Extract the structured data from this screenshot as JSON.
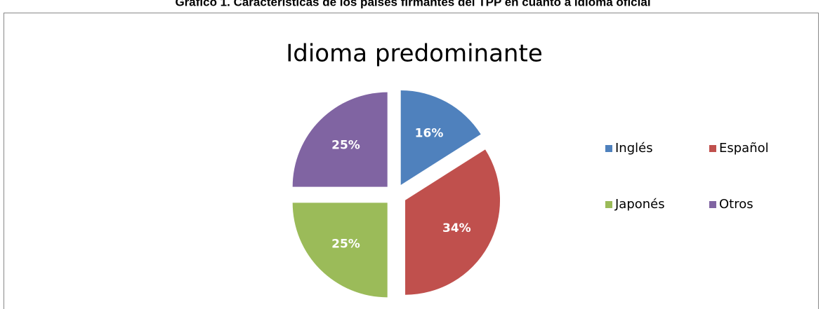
{
  "caption": "Gráfico 1. Características de los países firmantes del TPP en cuanto a idioma oficial",
  "chart_data": {
    "type": "pie",
    "title": "Idioma predominante",
    "categories": [
      "Inglés",
      "Español",
      "Japonés",
      "Otros"
    ],
    "values": [
      16,
      34,
      25,
      25
    ],
    "value_labels": [
      "16%",
      "34%",
      "25%",
      "25%"
    ],
    "colors": [
      "#4f81bd",
      "#c0504d",
      "#9bbb59",
      "#8064a2"
    ],
    "exploded": true,
    "legend": "right"
  }
}
